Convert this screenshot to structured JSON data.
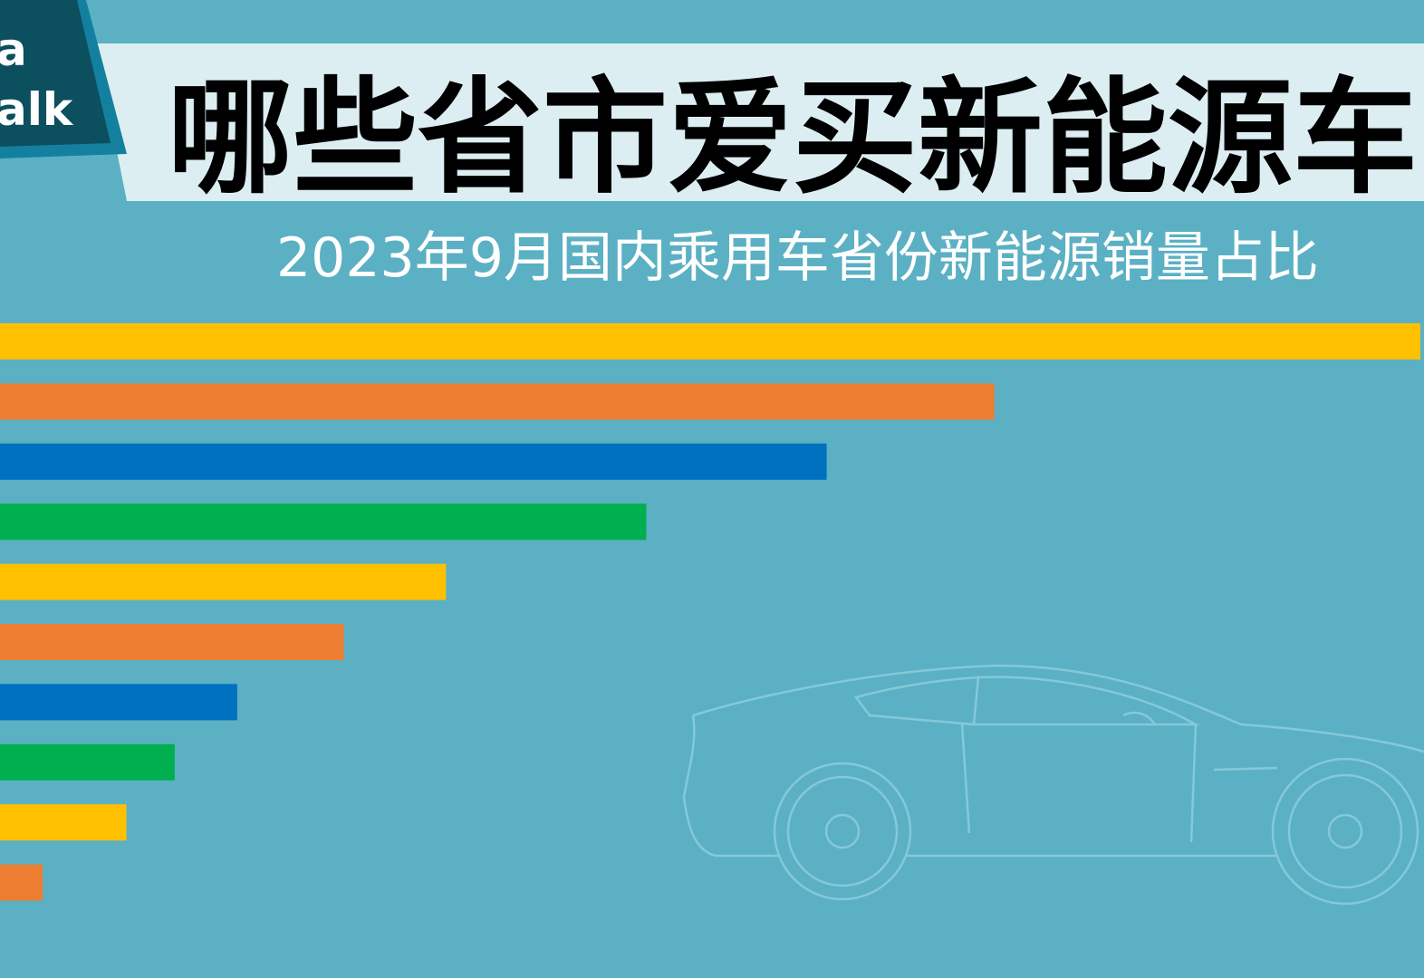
{
  "badge": {
    "line1": "a",
    "line2": "alk"
  },
  "chart_data": {
    "type": "bar",
    "orientation": "horizontal",
    "title": "哪些省市爱买新能源车",
    "subtitle": "2023年9月国内乘用车省份新能源销量占比",
    "categories": [
      null,
      null,
      null,
      null,
      null,
      null,
      null,
      null,
      null,
      null
    ],
    "values": [
      100,
      70,
      58.2,
      45.5,
      31.4,
      24.2,
      16.7,
      12.3,
      8.9,
      3
    ],
    "colors": [
      "#ffc000",
      "#ed7d31",
      "#0070c0",
      "#00b050",
      "#ffc000",
      "#ed7d31",
      "#0070c0",
      "#00b050",
      "#ffc000",
      "#ed7d31"
    ],
    "xlim": [
      0,
      100
    ]
  }
}
